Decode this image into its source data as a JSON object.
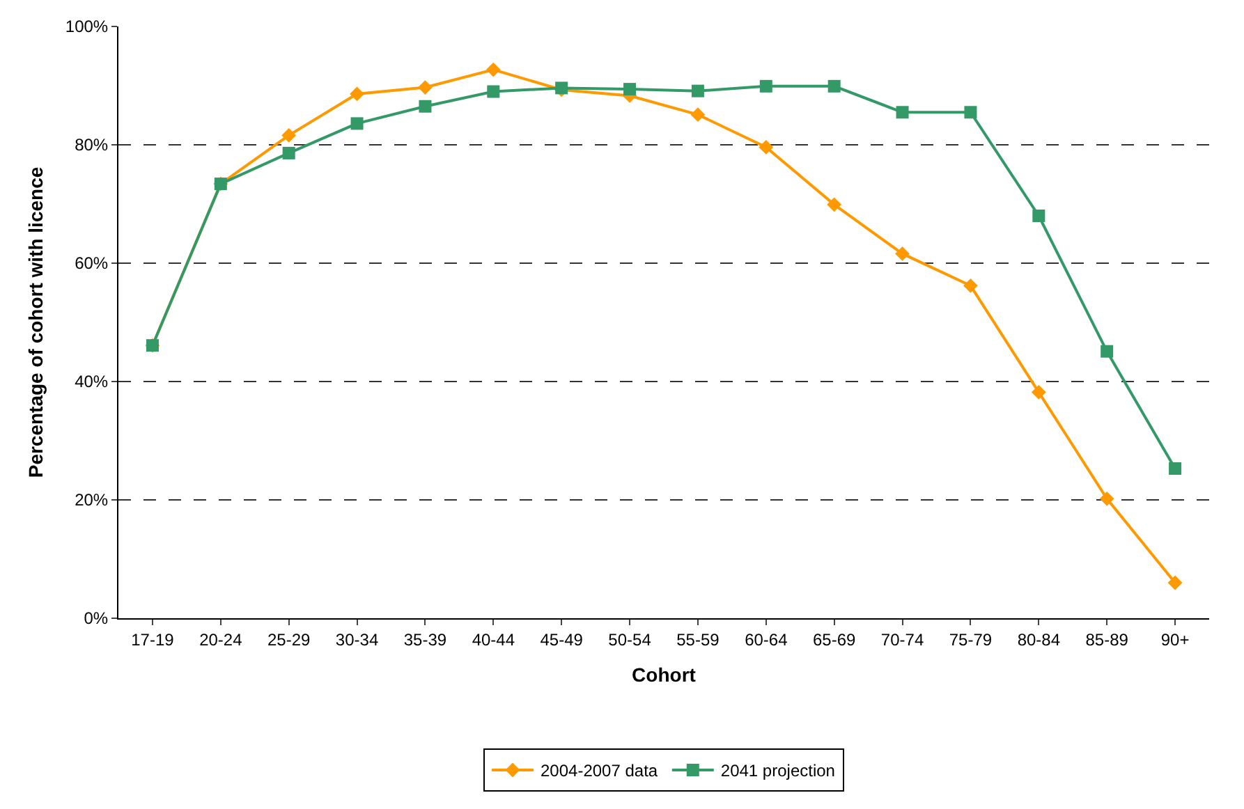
{
  "chart_data": {
    "type": "line",
    "xlabel": "Cohort",
    "ylabel": "Percentage of cohort with licence",
    "categories": [
      "17-19",
      "20-24",
      "25-29",
      "30-34",
      "35-39",
      "40-44",
      "45-49",
      "50-54",
      "55-59",
      "60-64",
      "65-69",
      "70-74",
      "75-79",
      "80-84",
      "85-89",
      "90+"
    ],
    "series": [
      {
        "name": "2004-2007 data",
        "color": "#ff9900",
        "marker": "diamond",
        "values": [
          46.1,
          73.4,
          81.6,
          88.6,
          89.7,
          92.7,
          89.3,
          88.3,
          85.1,
          79.6,
          69.9,
          61.6,
          56.2,
          38.2,
          20.2,
          6.0
        ]
      },
      {
        "name": "2041 projection",
        "color": "#339966",
        "marker": "square",
        "values": [
          46.1,
          73.4,
          78.6,
          83.6,
          86.5,
          89.0,
          89.6,
          89.4,
          89.1,
          89.9,
          89.9,
          85.5,
          85.5,
          68.0,
          45.1,
          25.3
        ]
      }
    ],
    "ylim": [
      0,
      100
    ],
    "yticks": [
      {
        "value": 0,
        "label": "0%"
      },
      {
        "value": 20,
        "label": "20%"
      },
      {
        "value": 40,
        "label": "40%"
      },
      {
        "value": 60,
        "label": "60%"
      },
      {
        "value": 80,
        "label": "80%"
      },
      {
        "value": 100,
        "label": "100%"
      }
    ],
    "grid": "y",
    "line_style": "solid",
    "legend": "bottom"
  }
}
